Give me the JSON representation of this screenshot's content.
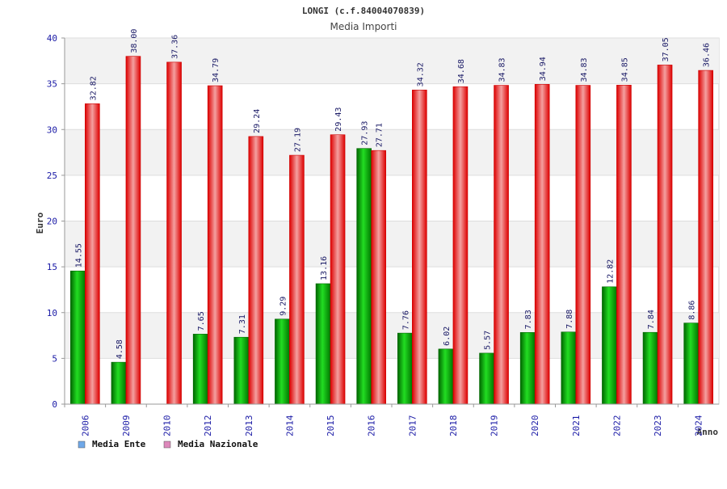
{
  "chart_data": {
    "type": "bar",
    "title": "LONGI (c.f.84004070839)",
    "subtitle": "Media Importi",
    "ylabel": "Euro",
    "xlabel": "Anno",
    "ylim": [
      0,
      40
    ],
    "yticks": [
      0,
      5,
      10,
      15,
      20,
      25,
      30,
      35,
      40
    ],
    "grid": true,
    "legend_position": "bottom-left",
    "categories": [
      "2006",
      "2009",
      "2010",
      "2012",
      "2013",
      "2014",
      "2015",
      "2016",
      "2017",
      "2018",
      "2019",
      "2020",
      "2021",
      "2022",
      "2023",
      "2024"
    ],
    "series": [
      {
        "name": "Media Ente",
        "color": "#00aa00",
        "legend_color": "#6fa8e8",
        "values": [
          14.55,
          4.58,
          null,
          7.65,
          7.31,
          9.29,
          13.16,
          27.93,
          7.76,
          6.02,
          5.57,
          7.83,
          7.88,
          12.82,
          7.84,
          8.86
        ],
        "labels": [
          "14.55",
          "4.58",
          "",
          "7.65",
          "7.31",
          "9.29",
          "13.16",
          "27.93",
          "7.76",
          "6.02",
          "5.57",
          "7.83",
          "7.88",
          "12.82",
          "7.84",
          "8.86"
        ]
      },
      {
        "name": "Media Nazionale",
        "color": "#ee1111",
        "legend_color": "#dd88bb",
        "values": [
          32.82,
          38.0,
          37.36,
          34.79,
          29.24,
          27.19,
          29.43,
          27.71,
          34.32,
          34.68,
          34.83,
          34.94,
          34.83,
          34.85,
          37.05,
          36.46
        ],
        "labels": [
          "32.82",
          "38.00",
          "37.36",
          "34.79",
          "29.24",
          "27.19",
          "29.43",
          "27.71",
          "34.32",
          "34.68",
          "34.83",
          "34.94",
          "34.83",
          "34.85",
          "37.05",
          "36.46"
        ]
      }
    ]
  }
}
